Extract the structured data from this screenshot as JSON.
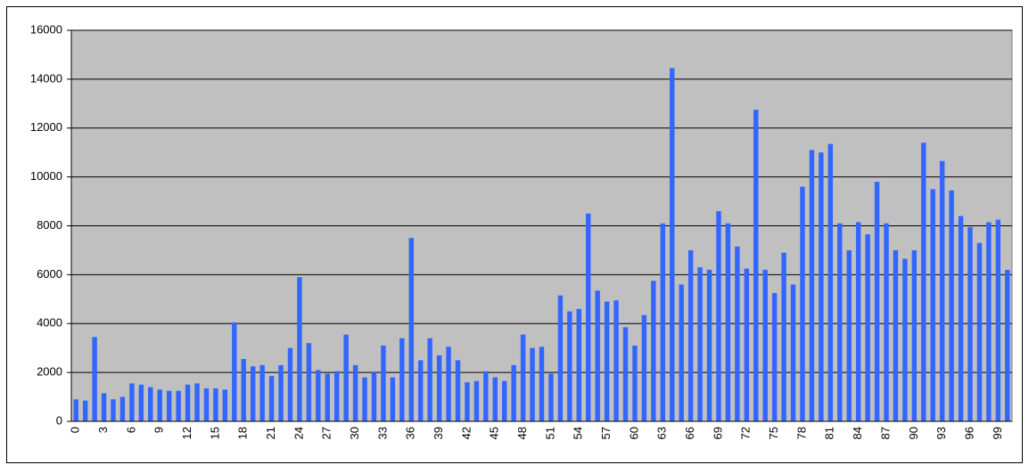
{
  "chart_data": {
    "type": "bar",
    "categories": [
      "0",
      null,
      null,
      "3",
      null,
      null,
      "6",
      null,
      null,
      "9",
      null,
      null,
      "12",
      null,
      null,
      "15",
      null,
      null,
      "18",
      null,
      null,
      "21",
      null,
      null,
      "24",
      null,
      null,
      "27",
      null,
      null,
      "30",
      null,
      null,
      "33",
      null,
      null,
      "36",
      null,
      null,
      "39",
      null,
      null,
      "42",
      null,
      null,
      "45",
      null,
      null,
      "48",
      null,
      null,
      "51",
      null,
      null,
      "54",
      null,
      null,
      "57",
      null,
      null,
      "60",
      null,
      null,
      "63",
      null,
      null,
      "66",
      null,
      null,
      "69",
      null,
      null,
      "72",
      null,
      null,
      "75",
      null,
      null,
      "78",
      null,
      null,
      "81",
      null,
      null,
      "84",
      null,
      null,
      "87",
      null,
      null,
      "90",
      null,
      null,
      "93",
      null,
      null,
      "96",
      null,
      null,
      "99",
      null
    ],
    "values": [
      900,
      850,
      3450,
      1150,
      900,
      1000,
      1550,
      1500,
      1400,
      1300,
      1250,
      1250,
      1500,
      1550,
      1350,
      1350,
      1300,
      4050,
      2550,
      2250,
      2300,
      1850,
      2300,
      3000,
      5900,
      3200,
      2100,
      1950,
      2050,
      3550,
      2300,
      1800,
      2000,
      3100,
      1800,
      3400,
      7500,
      2500,
      3400,
      2700,
      3050,
      2500,
      1600,
      1650,
      2050,
      1800,
      1650,
      2300,
      3550,
      3000,
      3050,
      1950,
      5150,
      4500,
      4600,
      8500,
      5350,
      4900,
      4950,
      3850,
      3100,
      4350,
      5750,
      8100,
      14450,
      5600,
      7000,
      6300,
      6200,
      8600,
      8100,
      7150,
      6250,
      12750,
      6200,
      5250,
      6900,
      5600,
      9600,
      11100,
      11000,
      11350,
      8100,
      7000,
      8150,
      7650,
      9800,
      8100,
      7000,
      6650,
      7000,
      11400,
      9500,
      10650,
      9450,
      8400,
      7950,
      7300,
      8150,
      8250,
      6200
    ],
    "color": "#3366ff",
    "ylim": [
      0,
      16000
    ],
    "yticks": [
      0,
      2000,
      4000,
      6000,
      8000,
      10000,
      12000,
      14000,
      16000
    ],
    "grid": true
  }
}
